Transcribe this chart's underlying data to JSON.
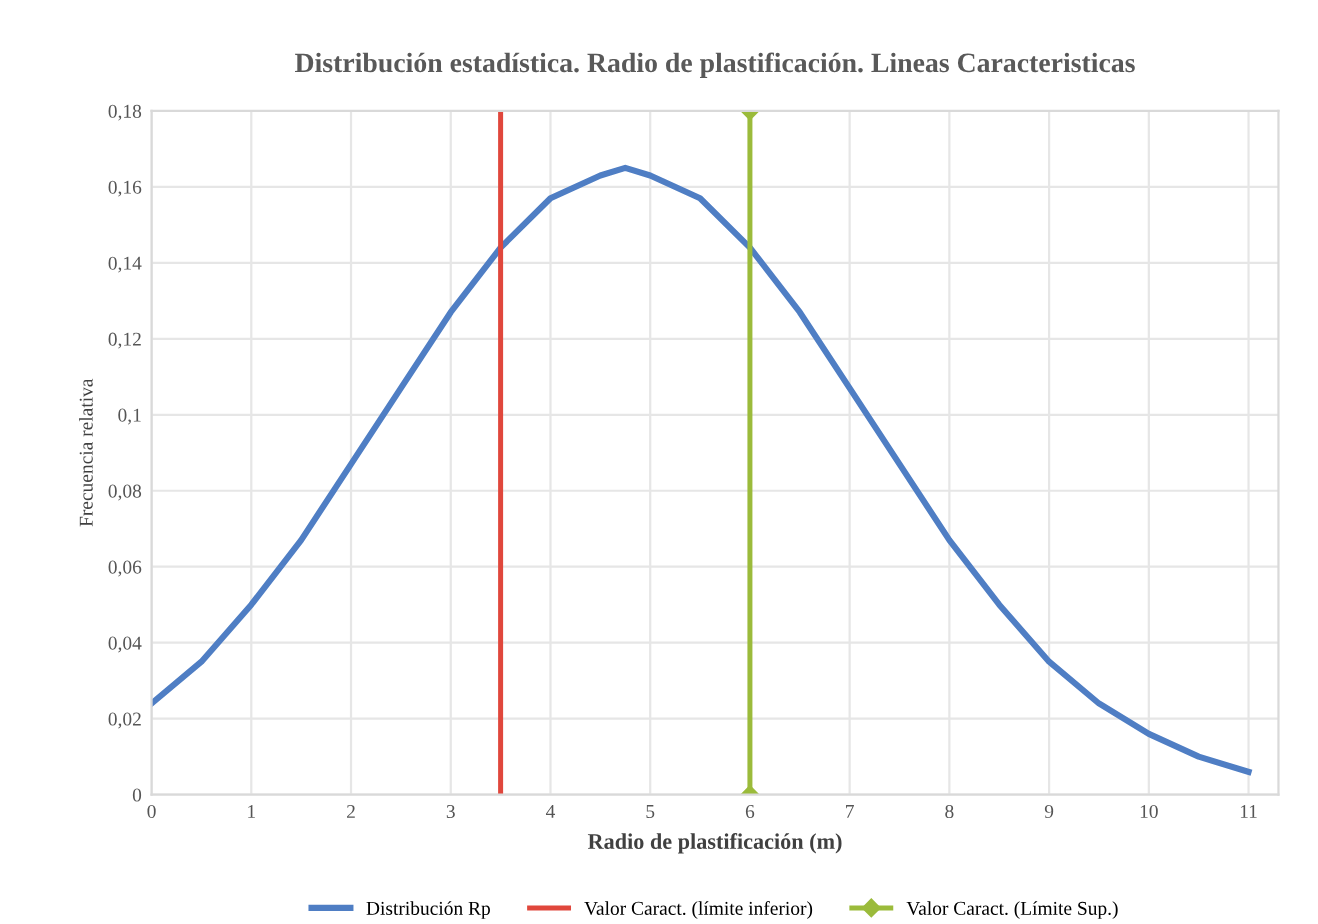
{
  "chart_data": {
    "type": "line",
    "title": "Distribución estadística. Radio de plastificación. Lineas Caracteristicas",
    "xlabel": "Radio de plastificación (m)",
    "ylabel": "Frecuencia relativa",
    "x": [
      0,
      0.5,
      1,
      1.5,
      2,
      2.5,
      3,
      3.5,
      4,
      4.5,
      4.75,
      5,
      5.5,
      6,
      6.5,
      7,
      7.5,
      8,
      8.5,
      9,
      9.5,
      10,
      10.5,
      11
    ],
    "series": [
      {
        "name": "Distribución Rp",
        "color": "#4f7ec4",
        "values": [
          0.024,
          0.035,
          0.05,
          0.067,
          0.087,
          0.107,
          0.127,
          0.144,
          0.157,
          0.163,
          0.165,
          0.163,
          0.157,
          0.144,
          0.127,
          0.107,
          0.087,
          0.067,
          0.05,
          0.035,
          0.024,
          0.016,
          0.01,
          0.006
        ]
      },
      {
        "name": "Valor Caract. (Límite Sup.)",
        "color": "#9bbb3b",
        "x": [
          6,
          6
        ],
        "values": [
          0,
          0.18
        ],
        "marker": "diamond"
      }
    ],
    "ref_lines": [
      {
        "axis": "x",
        "value": 3.5,
        "label": "Valor Caract. (límite inferior)",
        "color": "#e0473c",
        "line_style": "solid"
      }
    ],
    "xlim": [
      0,
      11.3
    ],
    "xticks": [
      0,
      1,
      2,
      3,
      4,
      5,
      6,
      7,
      8,
      9,
      10,
      11
    ],
    "ylim": [
      0,
      0.18
    ],
    "yticks": [
      0,
      {
        "value": 0.02,
        "label": "0,02"
      },
      {
        "value": 0.04,
        "label": "0,04"
      },
      {
        "value": 0.06,
        "label": "0,06"
      },
      {
        "value": 0.08,
        "label": "0,08"
      },
      {
        "value": 0.1,
        "label": "0,1"
      },
      {
        "value": 0.12,
        "label": "0,12"
      },
      {
        "value": 0.14,
        "label": "0,14"
      },
      {
        "value": 0.16,
        "label": "0,16"
      },
      {
        "value": 0.18,
        "label": "0,18"
      }
    ],
    "grid": true,
    "legend": "bottom",
    "marker": "none",
    "line_style": "solid"
  }
}
